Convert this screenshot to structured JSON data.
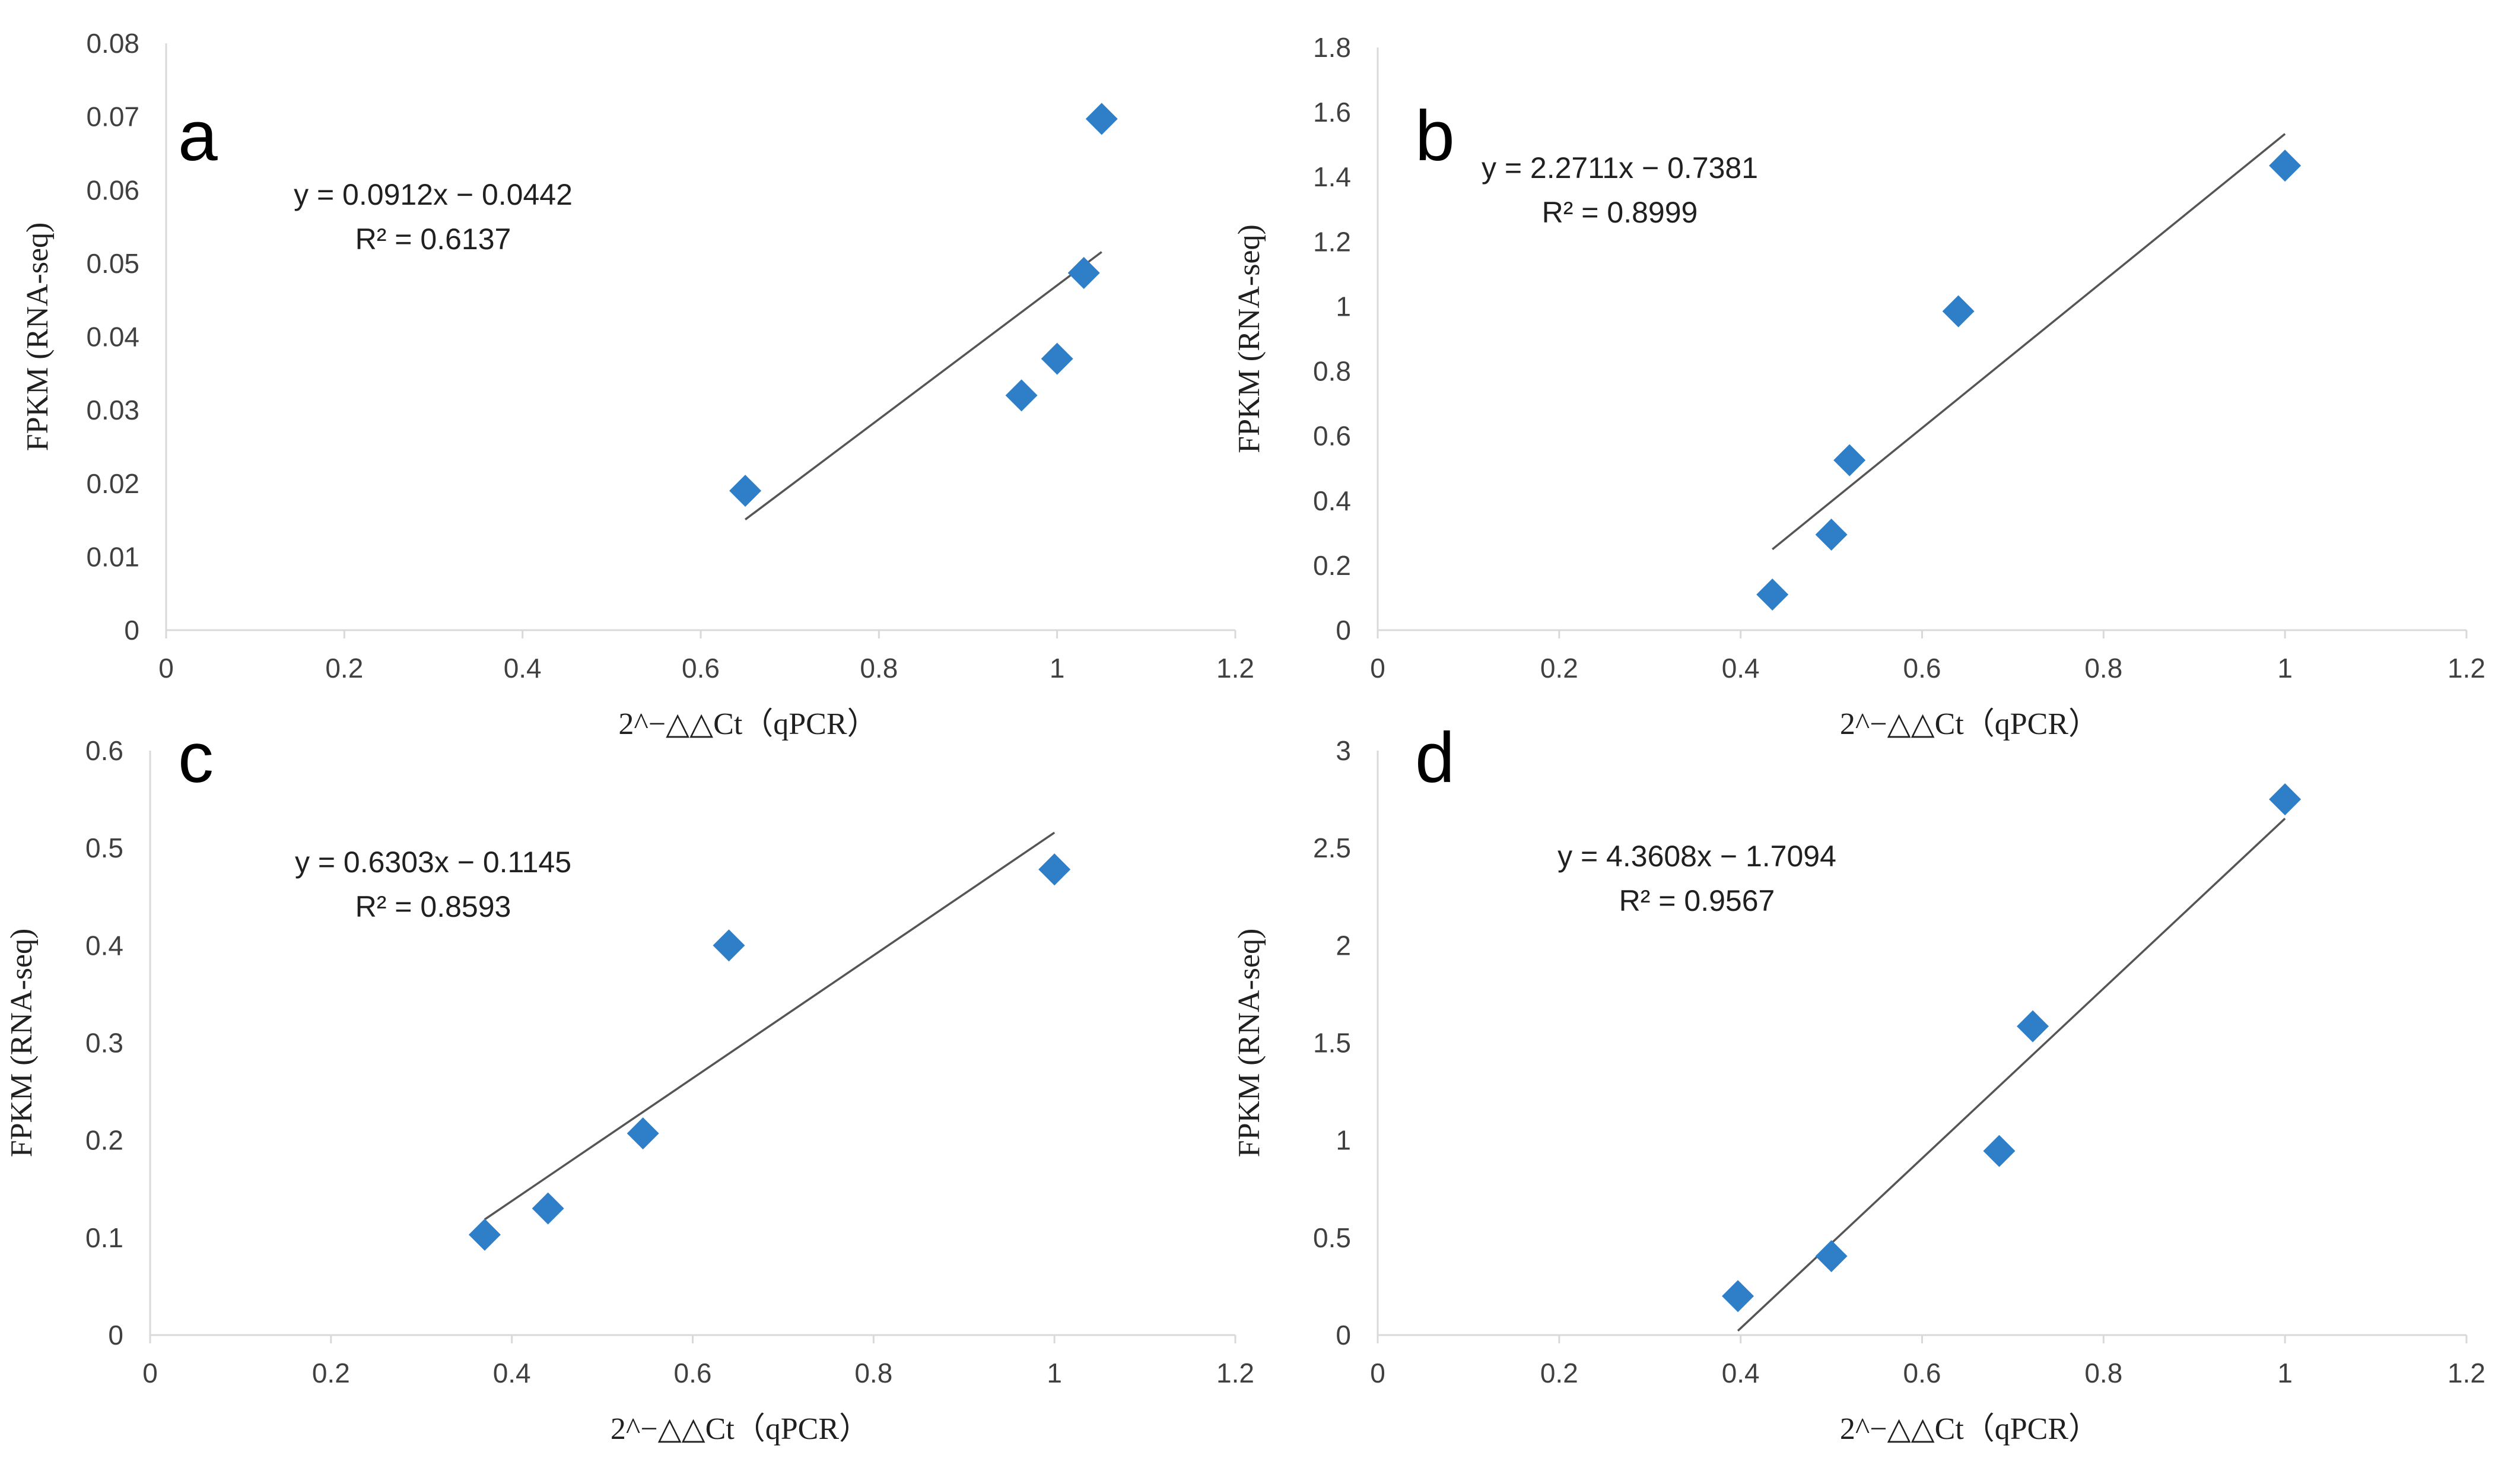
{
  "figure": {
    "marker_color": "#2e7fc8",
    "trend_color": "#555555",
    "axis_color": "#d9d9d9"
  },
  "chart_data": [
    {
      "type": "scatter",
      "panel": "a",
      "xlabel": "2^−△△Ct（qPCR）",
      "ylabel": "FPKM (RNA-seq)",
      "xlim": [
        0,
        1.2
      ],
      "ylim": [
        0,
        0.08
      ],
      "xticks": [
        0,
        0.2,
        0.4,
        0.6,
        0.8,
        1,
        1.2
      ],
      "yticks": [
        0,
        0.01,
        0.02,
        0.03,
        0.04,
        0.05,
        0.06,
        0.07,
        0.08
      ],
      "xtick_labels": [
        "0",
        "0.2",
        "0.4",
        "0.6",
        "0.8",
        "1",
        "1.2"
      ],
      "ytick_labels": [
        "0",
        "0.01",
        "0.02",
        "0.03",
        "0.04",
        "0.05",
        "0.06",
        "0.07",
        "0.08"
      ],
      "points": [
        {
          "x": 0.65,
          "y": 0.019
        },
        {
          "x": 0.96,
          "y": 0.032
        },
        {
          "x": 1.0,
          "y": 0.037
        },
        {
          "x": 1.03,
          "y": 0.0487
        },
        {
          "x": 1.05,
          "y": 0.0697
        }
      ],
      "trendline": {
        "slope": 0.0912,
        "intercept": -0.0442,
        "x_range": [
          0.65,
          1.05
        ]
      },
      "equation": "y = 0.0912x − 0.0442",
      "r2": "R² = 0.6137"
    },
    {
      "type": "scatter",
      "panel": "b",
      "xlabel": "2^−△△Ct（qPCR）",
      "ylabel": "FPKM (RNA-seq)",
      "xlim": [
        0,
        1.2
      ],
      "ylim": [
        0,
        1.8
      ],
      "xticks": [
        0,
        0.2,
        0.4,
        0.6,
        0.8,
        1,
        1.2
      ],
      "yticks": [
        0,
        0.2,
        0.4,
        0.6,
        0.8,
        1,
        1.2,
        1.4,
        1.6,
        1.8
      ],
      "xtick_labels": [
        "0",
        "0.2",
        "0.4",
        "0.6",
        "0.8",
        "1",
        "1.2"
      ],
      "ytick_labels": [
        "0",
        "0.2",
        "0.4",
        "0.6",
        "0.8",
        "1",
        "1.2",
        "1.4",
        "1.6",
        "1.8"
      ],
      "points": [
        {
          "x": 0.435,
          "y": 0.11
        },
        {
          "x": 0.5,
          "y": 0.295
        },
        {
          "x": 0.52,
          "y": 0.525
        },
        {
          "x": 0.64,
          "y": 0.985
        },
        {
          "x": 1.0,
          "y": 1.435
        }
      ],
      "trendline": {
        "slope": 2.2711,
        "intercept": -0.7381,
        "x_range": [
          0.435,
          1.0
        ]
      },
      "equation": "y = 2.2711x − 0.7381",
      "r2": "R² = 0.8999"
    },
    {
      "type": "scatter",
      "panel": "c",
      "xlabel": "2^−△△Ct（qPCR）",
      "ylabel": "FPKM (RNA-seq)",
      "xlim": [
        0,
        1.2
      ],
      "ylim": [
        0,
        0.6
      ],
      "xticks": [
        0,
        0.2,
        0.4,
        0.6,
        0.8,
        1,
        1.2
      ],
      "yticks": [
        0,
        0.1,
        0.2,
        0.3,
        0.4,
        0.5,
        0.6
      ],
      "xtick_labels": [
        "0",
        "0.2",
        "0.4",
        "0.6",
        "0.8",
        "1",
        "1.2"
      ],
      "ytick_labels": [
        "0",
        "0.1",
        "0.2",
        "0.3",
        "0.4",
        "0.5",
        "0.6"
      ],
      "points": [
        {
          "x": 0.37,
          "y": 0.103
        },
        {
          "x": 0.44,
          "y": 0.13
        },
        {
          "x": 0.545,
          "y": 0.207
        },
        {
          "x": 0.64,
          "y": 0.4
        },
        {
          "x": 1.0,
          "y": 0.478
        }
      ],
      "trendline": {
        "slope": 0.6303,
        "intercept": -0.1145,
        "x_range": [
          0.37,
          1.0
        ]
      },
      "equation": "y = 0.6303x − 0.1145",
      "r2": "R² = 0.8593"
    },
    {
      "type": "scatter",
      "panel": "d",
      "xlabel": "2^−△△Ct（qPCR）",
      "ylabel": "FPKM (RNA-seq)",
      "xlim": [
        0,
        1.2
      ],
      "ylim": [
        0,
        3
      ],
      "xticks": [
        0,
        0.2,
        0.4,
        0.6,
        0.8,
        1,
        1.2
      ],
      "yticks": [
        0,
        0.5,
        1,
        1.5,
        2,
        2.5,
        3
      ],
      "xtick_labels": [
        "0",
        "0.2",
        "0.4",
        "0.6",
        "0.8",
        "1",
        "1.2"
      ],
      "ytick_labels": [
        "0",
        "0.5",
        "1",
        "1.5",
        "2",
        "2.5",
        "3"
      ],
      "points": [
        {
          "x": 0.397,
          "y": 0.2
        },
        {
          "x": 0.5,
          "y": 0.405
        },
        {
          "x": 0.685,
          "y": 0.945
        },
        {
          "x": 0.722,
          "y": 1.585
        },
        {
          "x": 1.0,
          "y": 2.75
        }
      ],
      "trendline": {
        "slope": 4.3608,
        "intercept": -1.7094,
        "x_range": [
          0.397,
          1.0
        ]
      },
      "equation": "y = 4.3608x − 1.7094",
      "r2": "R² = 0.9567"
    }
  ]
}
